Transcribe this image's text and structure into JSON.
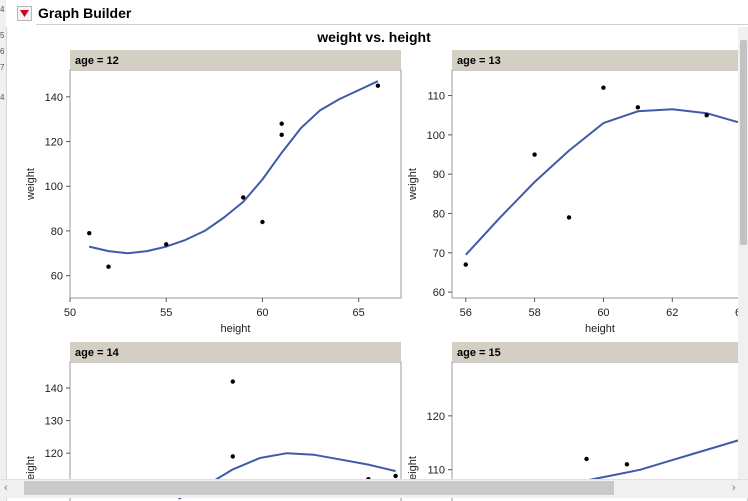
{
  "app": {
    "title": "Graph Builder"
  },
  "left_strip": [
    "4",
    "5",
    "6",
    "7",
    "4"
  ],
  "chart_title": "weight vs. height",
  "chart_data": [
    {
      "type": "scatter",
      "panel_label": "age = 12",
      "xlabel": "height",
      "ylabel": "weight",
      "xlim": [
        50,
        67.2
      ],
      "ylim": [
        50,
        152
      ],
      "xticks": [
        50,
        55,
        60,
        65
      ],
      "yticks": [
        60,
        80,
        100,
        120,
        140
      ],
      "points": [
        [
          51,
          79
        ],
        [
          52,
          64
        ],
        [
          55,
          74
        ],
        [
          59,
          95
        ],
        [
          60,
          84
        ],
        [
          61,
          123
        ],
        [
          61,
          128
        ],
        [
          66,
          145
        ]
      ],
      "curve": [
        [
          51,
          73
        ],
        [
          52,
          71
        ],
        [
          53,
          70
        ],
        [
          54,
          71
        ],
        [
          55,
          73
        ],
        [
          56,
          76
        ],
        [
          57,
          80
        ],
        [
          58,
          86
        ],
        [
          59,
          93
        ],
        [
          60,
          103
        ],
        [
          61,
          115
        ],
        [
          62,
          126
        ],
        [
          63,
          134
        ],
        [
          64,
          139
        ],
        [
          65,
          143
        ],
        [
          66,
          147
        ]
      ],
      "line_color": "#3f5aa8",
      "grid": false
    },
    {
      "type": "scatter",
      "panel_label": "age = 13",
      "xlabel": "height",
      "ylabel": "weight",
      "xlim": [
        55.6,
        64.2
      ],
      "ylim": [
        58.5,
        116.5
      ],
      "xticks": [
        56,
        58,
        60,
        62,
        64
      ],
      "yticks": [
        60,
        70,
        80,
        90,
        100,
        110
      ],
      "points": [
        [
          56,
          67
        ],
        [
          58,
          95
        ],
        [
          59,
          79
        ],
        [
          60,
          112
        ],
        [
          61,
          107
        ],
        [
          63,
          105
        ]
      ],
      "curve": [
        [
          56,
          69.5
        ],
        [
          57,
          79
        ],
        [
          58,
          88
        ],
        [
          59,
          96
        ],
        [
          60,
          103
        ],
        [
          61,
          106
        ],
        [
          62,
          106.5
        ],
        [
          63,
          105.5
        ],
        [
          64,
          103
        ]
      ],
      "line_color": "#3f5aa8",
      "grid": false
    },
    {
      "type": "scatter",
      "panel_label": "age = 14",
      "xlabel": "height",
      "ylabel": "weight",
      "xlim": [
        56,
        68.2
      ],
      "ylim": [
        105,
        148
      ],
      "xticks": [],
      "yticks": [
        110,
        120,
        130,
        140
      ],
      "points": [
        [
          62,
          142
        ],
        [
          62,
          119
        ],
        [
          67,
          112
        ],
        [
          68,
          113
        ]
      ],
      "curve": [
        [
          60,
          106
        ],
        [
          61,
          110
        ],
        [
          62,
          115
        ],
        [
          63,
          118.5
        ],
        [
          64,
          120
        ],
        [
          65,
          119.5
        ],
        [
          66,
          118
        ],
        [
          67,
          116.5
        ],
        [
          68,
          114.5
        ]
      ],
      "line_color": "#3f5aa8",
      "grid": false
    },
    {
      "type": "scatter",
      "panel_label": "age = 15",
      "xlabel": "height",
      "ylabel": "weight",
      "xlim": [
        58,
        69
      ],
      "ylim": [
        104,
        130
      ],
      "xticks": [],
      "yticks": [
        110,
        120
      ],
      "points": [
        [
          63,
          112
        ],
        [
          64.5,
          111
        ]
      ],
      "curve": [
        [
          62,
          107
        ],
        [
          63,
          108
        ],
        [
          64,
          109
        ],
        [
          65,
          110
        ],
        [
          66,
          111.5
        ],
        [
          67,
          113
        ],
        [
          68,
          114.5
        ],
        [
          69,
          116
        ]
      ],
      "line_color": "#3f5aa8",
      "grid": false
    }
  ]
}
